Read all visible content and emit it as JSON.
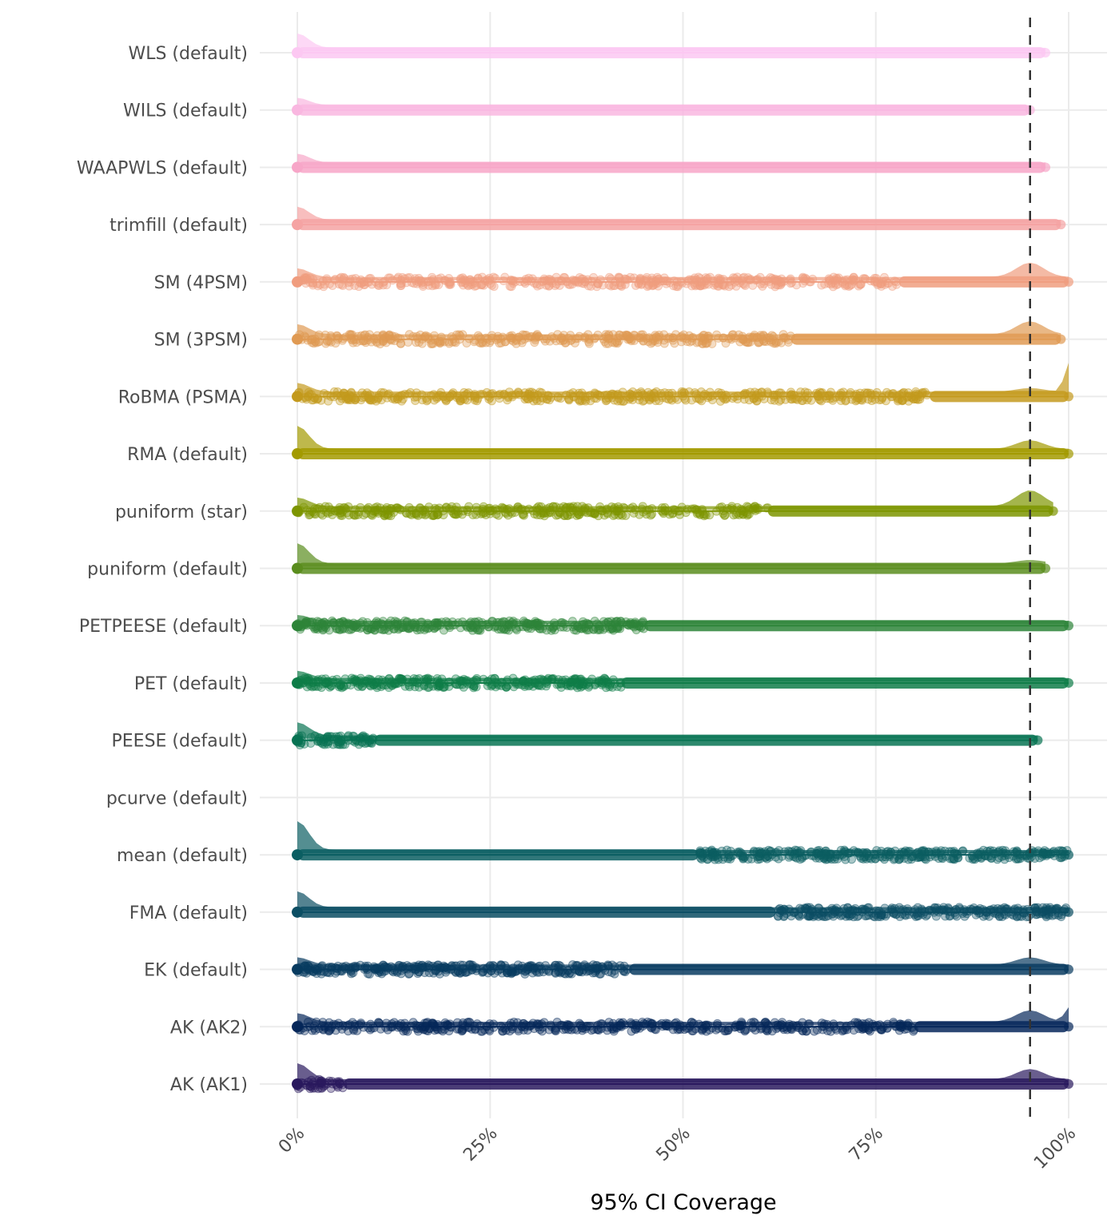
{
  "chart_data": {
    "type": "raincloud",
    "title": "",
    "xlabel": "95% CI Coverage",
    "ylabel": "",
    "xlim": [
      0,
      100
    ],
    "x_ticks": [
      0,
      25,
      50,
      75,
      100
    ],
    "x_tick_labels": [
      "0%",
      "25%",
      "50%",
      "75%",
      "100%"
    ],
    "reference_line": {
      "x": 95,
      "style": "dashed",
      "color": "#333333"
    },
    "grid": true,
    "legend": "none",
    "categories": [
      "WLS (default)",
      "WILS (default)",
      "WAAPWLS (default)",
      "trimfill (default)",
      "SM (4PSM)",
      "SM (3PSM)",
      "RoBMA (PSMA)",
      "RMA (default)",
      "puniform (star)",
      "puniform (default)",
      "PETPEESE (default)",
      "PET (default)",
      "PEESE (default)",
      "pcurve (default)",
      "mean (default)",
      "FMA (default)",
      "EK (default)",
      "AK (AK2)",
      "AK (AK1)"
    ],
    "series": [
      {
        "name": "WLS (default)",
        "color": "#FCC8F2",
        "min": 0,
        "max": 97,
        "density_peaks": [
          [
            0,
            0.5
          ]
        ],
        "dense_from": 0,
        "sparse": false
      },
      {
        "name": "WILS (default)",
        "color": "#F9B7E0",
        "min": 0,
        "max": 95,
        "density_peaks": [
          [
            0,
            0.25
          ]
        ],
        "dense_from": 0,
        "sparse": false
      },
      {
        "name": "WAAPWLS (default)",
        "color": "#F7A6C8",
        "min": 0,
        "max": 97,
        "density_peaks": [
          [
            0,
            0.3
          ]
        ],
        "dense_from": 0,
        "sparse": false
      },
      {
        "name": "trimfill (default)",
        "color": "#F5A3A3",
        "min": 0,
        "max": 99,
        "density_peaks": [
          [
            0,
            0.45
          ]
        ],
        "dense_from": 0,
        "sparse": false
      },
      {
        "name": "SM (4PSM)",
        "color": "#F09D7F",
        "min": 0,
        "max": 100,
        "density_peaks": [
          [
            0,
            0.3
          ],
          [
            95,
            0.5
          ]
        ],
        "dense_from": 78,
        "sparse": true
      },
      {
        "name": "SM (3PSM)",
        "color": "#E09A53",
        "min": 0,
        "max": 99,
        "density_peaks": [
          [
            0,
            0.35
          ],
          [
            95,
            0.45
          ]
        ],
        "dense_from": 64,
        "sparse": true
      },
      {
        "name": "RoBMA (PSMA)",
        "color": "#C49A1E",
        "min": 0,
        "max": 100,
        "density_peaks": [
          [
            0,
            0.3
          ],
          [
            95,
            0.12
          ],
          [
            100,
            1.0
          ]
        ],
        "dense_from": 82,
        "sparse": true
      },
      {
        "name": "RMA (default)",
        "color": "#A39A00",
        "min": 0,
        "max": 100,
        "density_peaks": [
          [
            0,
            0.8
          ],
          [
            95,
            0.3
          ]
        ],
        "dense_from": 0,
        "sparse": false
      },
      {
        "name": "puniform (star)",
        "color": "#7D9500",
        "min": 0,
        "max": 98,
        "density_peaks": [
          [
            0,
            0.3
          ],
          [
            95,
            0.55
          ]
        ],
        "dense_from": 61,
        "sparse": true
      },
      {
        "name": "puniform (default)",
        "color": "#5A8D1E",
        "min": 0,
        "max": 97,
        "density_peaks": [
          [
            0,
            0.7
          ],
          [
            95,
            0.12
          ]
        ],
        "dense_from": 0,
        "sparse": false
      },
      {
        "name": "PETPEESE (default)",
        "color": "#2E853A",
        "min": 0,
        "max": 100,
        "density_peaks": [
          [
            0,
            0.2
          ]
        ],
        "dense_from": 45,
        "sparse": false
      },
      {
        "name": "PET (default)",
        "color": "#0F7D49",
        "min": 0,
        "max": 100,
        "density_peaks": [
          [
            0,
            0.25
          ]
        ],
        "dense_from": 42,
        "sparse": false
      },
      {
        "name": "PEESE (default)",
        "color": "#087453",
        "min": 0,
        "max": 96,
        "density_peaks": [
          [
            0,
            0.45
          ]
        ],
        "dense_from": 10,
        "sparse": false
      },
      {
        "name": "pcurve (default)",
        "color": "#0A6B5E",
        "min": null,
        "max": null,
        "density_peaks": [],
        "dense_from": null,
        "sparse": false
      },
      {
        "name": "mean (default)",
        "color": "#0B5E62",
        "min": 0,
        "max": 100,
        "density_peaks": [
          [
            0,
            1.0
          ]
        ],
        "dense_from": 0,
        "sparse_from": 52
      },
      {
        "name": "FMA (default)",
        "color": "#0B4E63",
        "min": 0,
        "max": 100,
        "density_peaks": [
          [
            0,
            0.55
          ]
        ],
        "dense_from": 0,
        "sparse_from": 62
      },
      {
        "name": "EK (default)",
        "color": "#083B60",
        "min": 0,
        "max": 100,
        "density_peaks": [
          [
            0,
            0.25
          ],
          [
            95,
            0.25
          ]
        ],
        "dense_from": 43,
        "sparse": false
      },
      {
        "name": "AK (AK2)",
        "color": "#06275A",
        "min": 0,
        "max": 100,
        "density_peaks": [
          [
            0,
            0.3
          ],
          [
            95,
            0.4
          ],
          [
            100,
            0.5
          ]
        ],
        "dense_from": 80,
        "sparse": true
      },
      {
        "name": "AK (AK1)",
        "color": "#2A1A5E",
        "min": 0,
        "max": 100,
        "density_peaks": [
          [
            0,
            0.55
          ],
          [
            95,
            0.35
          ]
        ],
        "dense_from": 6,
        "sparse": false
      }
    ]
  }
}
